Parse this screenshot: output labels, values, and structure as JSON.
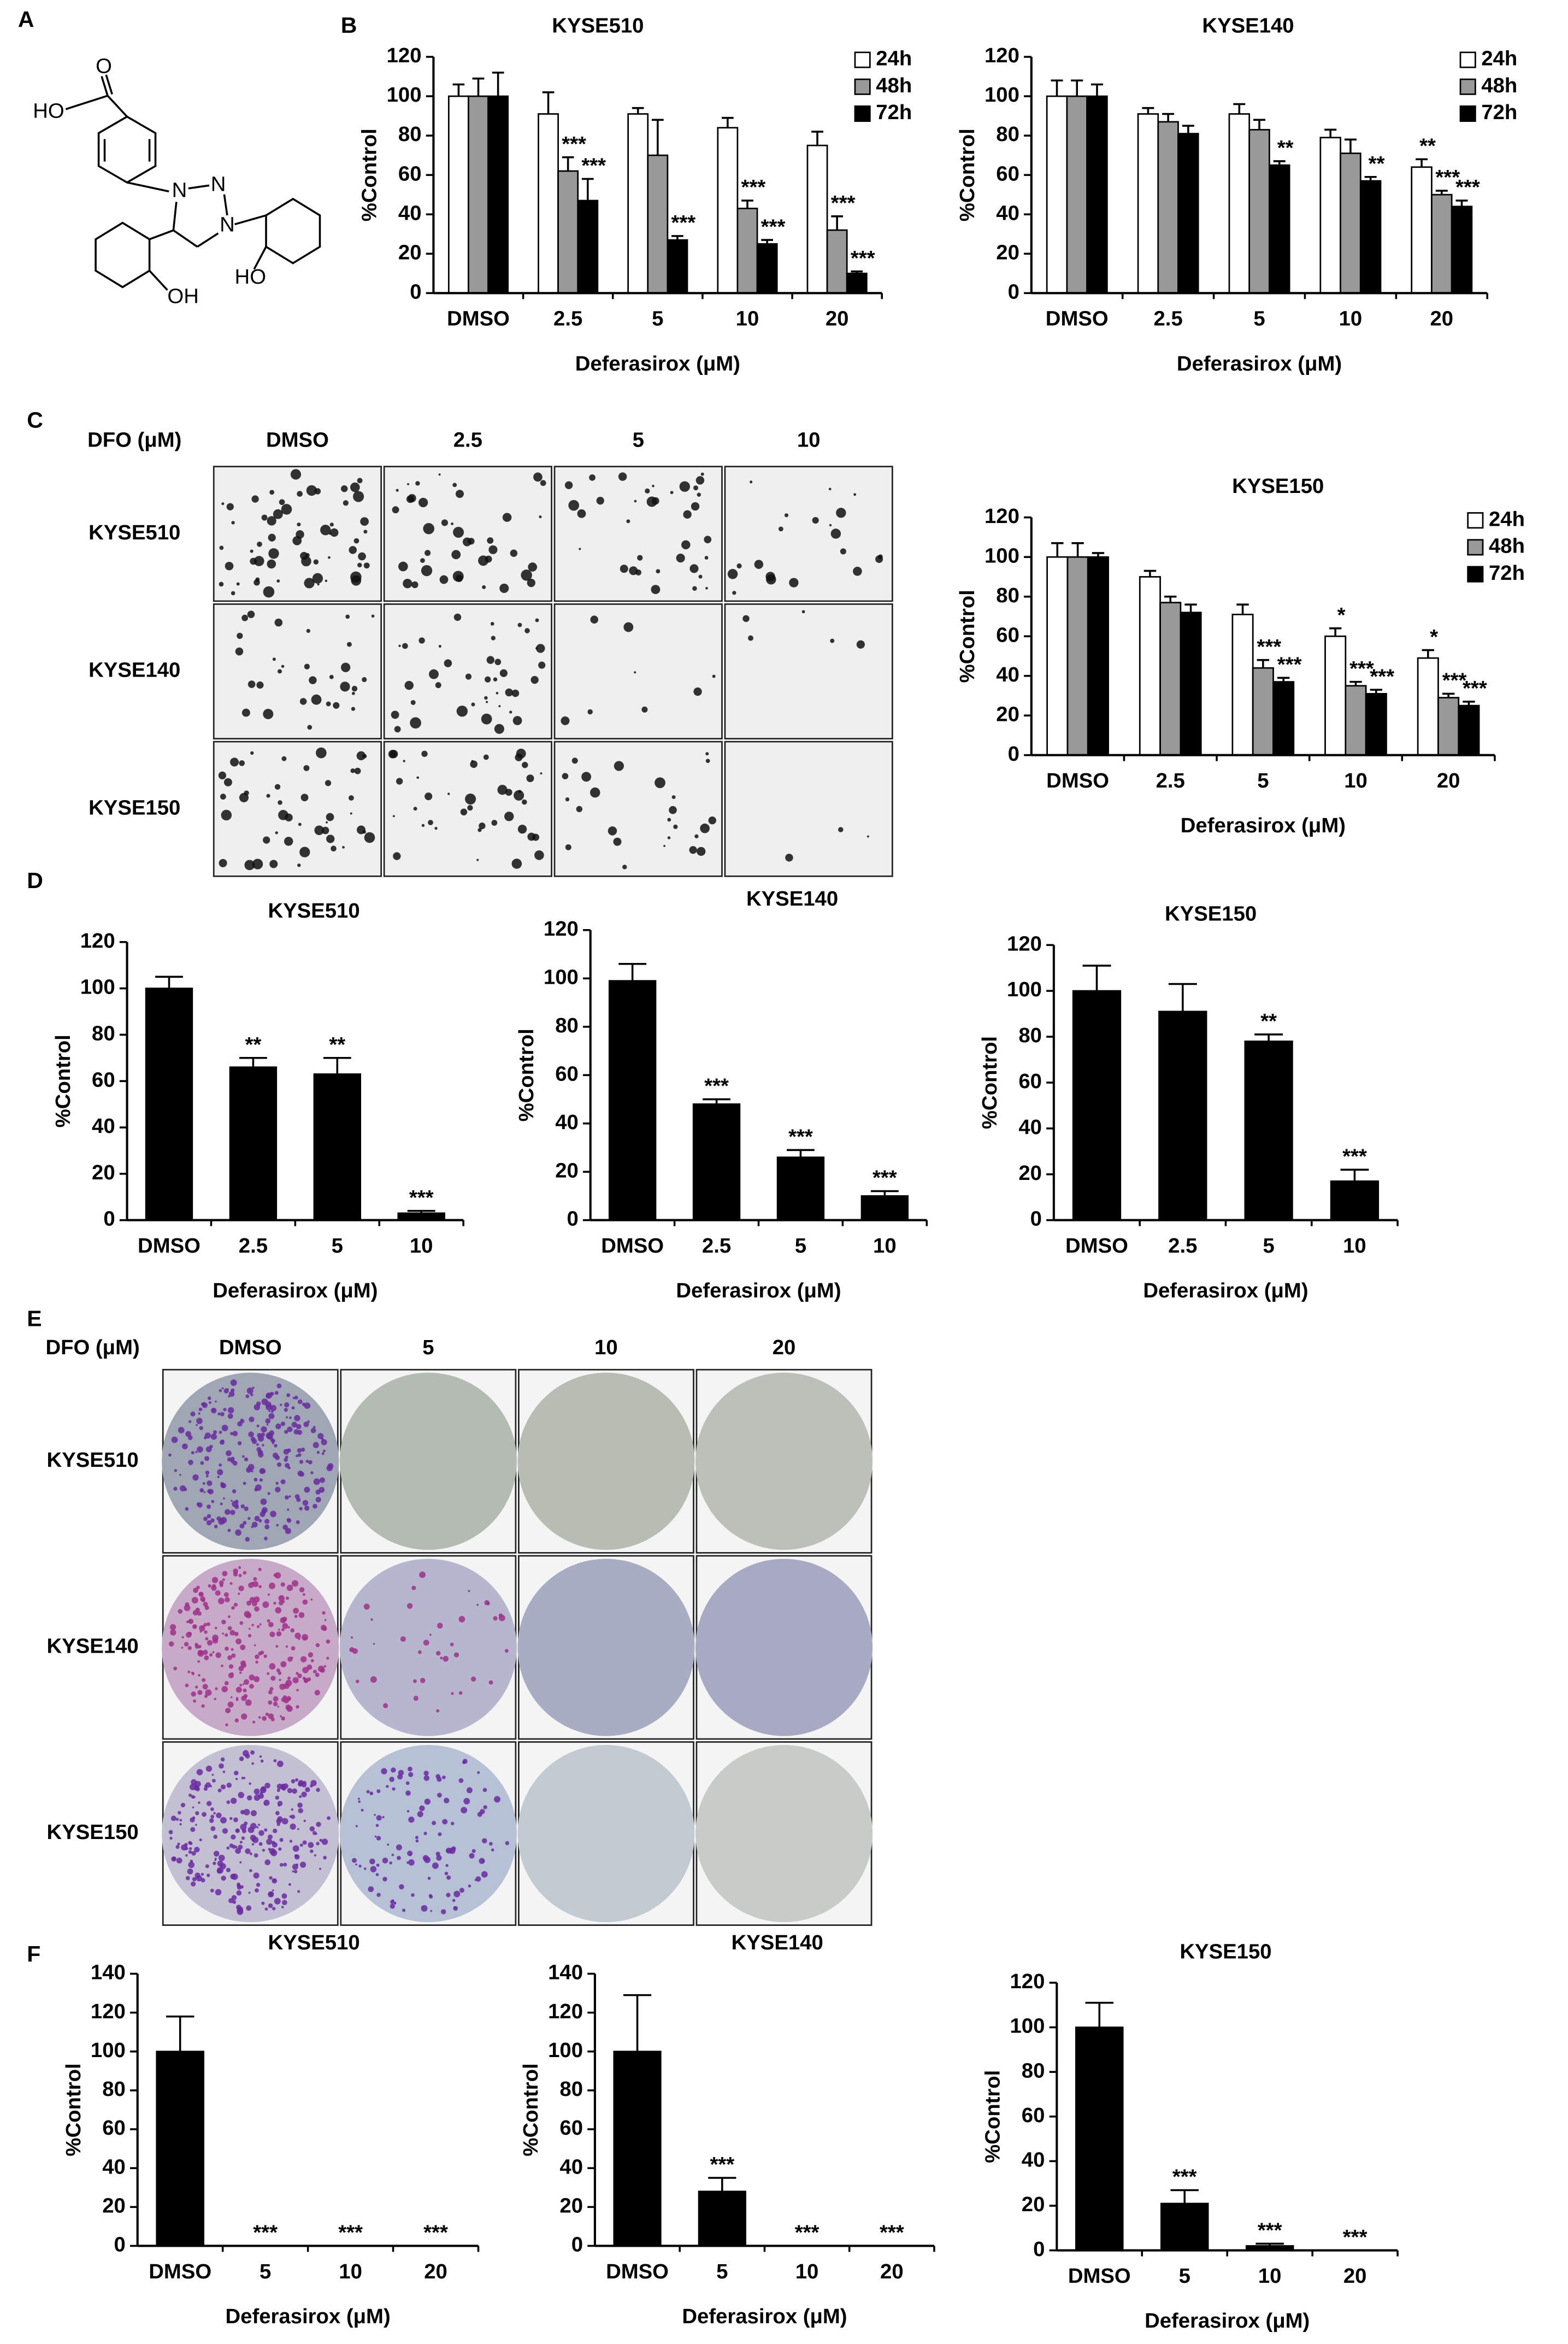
{
  "panel_labels": [
    "A",
    "B",
    "C",
    "D",
    "E",
    "F"
  ],
  "structure": {
    "atoms": [
      "O",
      "HO",
      "N",
      "N",
      "N",
      "OH",
      "HO"
    ]
  },
  "colony_images": {
    "header": "DFO (μM)",
    "columns": [
      "DMSO",
      "2.5",
      "5",
      "10"
    ],
    "rows": [
      "KYSE510",
      "KYSE140",
      "KYSE150"
    ]
  },
  "clonogenic_images": {
    "header": "DFO (μM)",
    "columns": [
      "DMSO",
      "5",
      "10",
      "20"
    ],
    "rows": [
      "KYSE510",
      "KYSE140",
      "KYSE150"
    ]
  },
  "chart_data": [
    {
      "type": "bar",
      "title": "KYSE510",
      "x_label": "Deferasirox (μM)",
      "y_label": "%Control",
      "categories": [
        "DMSO",
        "2.5",
        "5",
        "10",
        "20"
      ],
      "series": [
        {
          "name": "24h",
          "color": "#ffffff",
          "values": [
            100,
            91,
            91,
            84,
            75
          ],
          "errors": [
            6,
            11,
            3,
            5,
            7
          ],
          "annotations": [
            null,
            null,
            null,
            null,
            null
          ]
        },
        {
          "name": "48h",
          "color": "#999999",
          "values": [
            100,
            62,
            70,
            43,
            32
          ],
          "errors": [
            9,
            7,
            18,
            4,
            7
          ],
          "annotations": [
            null,
            "***",
            null,
            "***",
            "***"
          ]
        },
        {
          "name": "72h",
          "color": "#000000",
          "values": [
            100,
            47,
            27,
            25,
            10
          ],
          "errors": [
            12,
            11,
            2,
            2,
            1
          ],
          "annotations": [
            null,
            "***",
            "***",
            "***",
            "***"
          ]
        }
      ],
      "ylim": [
        0,
        120
      ],
      "yticks": [
        0,
        20,
        40,
        60,
        80,
        100,
        120
      ],
      "legend": "upper right"
    },
    {
      "type": "bar",
      "title": "KYSE140",
      "x_label": "Deferasirox (μM)",
      "y_label": "%Control",
      "categories": [
        "DMSO",
        "2.5",
        "5",
        "10",
        "20"
      ],
      "series": [
        {
          "name": "24h",
          "color": "#ffffff",
          "values": [
            100,
            91,
            91,
            79,
            64
          ],
          "errors": [
            8,
            3,
            5,
            4,
            4
          ],
          "annotations": [
            null,
            null,
            null,
            null,
            "**"
          ]
        },
        {
          "name": "48h",
          "color": "#999999",
          "values": [
            100,
            87,
            83,
            71,
            50
          ],
          "errors": [
            8,
            4,
            5,
            7,
            2
          ],
          "annotations": [
            null,
            null,
            null,
            null,
            "***"
          ]
        },
        {
          "name": "72h",
          "color": "#000000",
          "values": [
            100,
            81,
            65,
            57,
            44
          ],
          "errors": [
            6,
            4,
            2,
            2,
            3
          ],
          "annotations": [
            null,
            null,
            "**",
            "**",
            "***"
          ]
        }
      ],
      "ylim": [
        0,
        120
      ],
      "yticks": [
        0,
        20,
        40,
        60,
        80,
        100,
        120
      ],
      "legend": "upper right"
    },
    {
      "type": "bar",
      "title": "KYSE150",
      "x_label": "Deferasirox (μM)",
      "y_label": "%Control",
      "categories": [
        "DMSO",
        "2.5",
        "5",
        "10",
        "20"
      ],
      "series": [
        {
          "name": "24h",
          "color": "#ffffff",
          "values": [
            100,
            90,
            71,
            60,
            49
          ],
          "errors": [
            7,
            3,
            5,
            4,
            4
          ],
          "annotations": [
            null,
            null,
            null,
            "*",
            "*"
          ]
        },
        {
          "name": "48h",
          "color": "#999999",
          "values": [
            100,
            77,
            44,
            35,
            29
          ],
          "errors": [
            7,
            3,
            4,
            2,
            2
          ],
          "annotations": [
            null,
            null,
            "***",
            "***",
            "***"
          ]
        },
        {
          "name": "72h",
          "color": "#000000",
          "values": [
            100,
            72,
            37,
            31,
            25
          ],
          "errors": [
            2,
            4,
            2,
            2,
            2
          ],
          "annotations": [
            null,
            null,
            "***",
            "***",
            "***"
          ]
        }
      ],
      "ylim": [
        0,
        120
      ],
      "yticks": [
        0,
        20,
        40,
        60,
        80,
        100,
        120
      ],
      "legend": "upper right"
    },
    {
      "type": "bar",
      "title": "KYSE510",
      "x_label": "Deferasirox (μM)",
      "y_label": "%Control",
      "categories": [
        "DMSO",
        "2.5",
        "5",
        "10"
      ],
      "color": "#000000",
      "values": [
        100,
        66,
        63,
        3
      ],
      "errors": [
        5,
        4,
        7,
        1
      ],
      "annotations": [
        null,
        "**",
        "**",
        "***"
      ],
      "ylim": [
        0,
        120
      ],
      "yticks": [
        0,
        20,
        40,
        60,
        80,
        100,
        120
      ]
    },
    {
      "type": "bar",
      "title": "KYSE140",
      "x_label": "Deferasirox (μM)",
      "y_label": "%Control",
      "categories": [
        "DMSO",
        "2.5",
        "5",
        "10"
      ],
      "color": "#000000",
      "values": [
        99,
        48,
        26,
        10
      ],
      "errors": [
        7,
        2,
        3,
        2
      ],
      "annotations": [
        null,
        "***",
        "***",
        "***"
      ],
      "ylim": [
        0,
        120
      ],
      "yticks": [
        0,
        20,
        40,
        60,
        80,
        100,
        120
      ]
    },
    {
      "type": "bar",
      "title": "KYSE150",
      "x_label": "Deferasirox (μM)",
      "y_label": "%Control",
      "categories": [
        "DMSO",
        "2.5",
        "5",
        "10"
      ],
      "color": "#000000",
      "values": [
        100,
        91,
        78,
        17
      ],
      "errors": [
        11,
        12,
        3,
        5
      ],
      "annotations": [
        null,
        null,
        "**",
        "***"
      ],
      "ylim": [
        0,
        120
      ],
      "yticks": [
        0,
        20,
        40,
        60,
        80,
        100,
        120
      ]
    },
    {
      "type": "bar",
      "title": "KYSE510",
      "x_label": "Deferasirox (μM)",
      "y_label": "%Control",
      "categories": [
        "DMSO",
        "5",
        "10",
        "20"
      ],
      "color": "#000000",
      "values": [
        100,
        0,
        0,
        0
      ],
      "errors": [
        18,
        null,
        null,
        null
      ],
      "annotations": [
        null,
        "***",
        "***",
        "***"
      ],
      "ylim": [
        0,
        140
      ],
      "yticks": [
        0,
        20,
        40,
        60,
        80,
        100,
        120,
        140
      ]
    },
    {
      "type": "bar",
      "title": "KYSE140",
      "x_label": "Deferasirox (μM)",
      "y_label": "%Control",
      "categories": [
        "DMSO",
        "5",
        "10",
        "20"
      ],
      "color": "#000000",
      "values": [
        100,
        28,
        0,
        0
      ],
      "errors": [
        29,
        7,
        null,
        null
      ],
      "annotations": [
        null,
        "***",
        "***",
        "***"
      ],
      "ylim": [
        0,
        140
      ],
      "yticks": [
        0,
        20,
        40,
        60,
        80,
        100,
        120,
        140
      ]
    },
    {
      "type": "bar",
      "title": "KYSE150",
      "x_label": "Deferasirox (μM)",
      "y_label": "%Control",
      "categories": [
        "DMSO",
        "5",
        "10",
        "20"
      ],
      "color": "#000000",
      "values": [
        100,
        21,
        2,
        0
      ],
      "errors": [
        11,
        6,
        1,
        null
      ],
      "annotations": [
        null,
        "***",
        "***",
        "***"
      ],
      "ylim": [
        0,
        120
      ],
      "yticks": [
        0,
        20,
        40,
        60,
        80,
        100,
        120
      ]
    }
  ]
}
